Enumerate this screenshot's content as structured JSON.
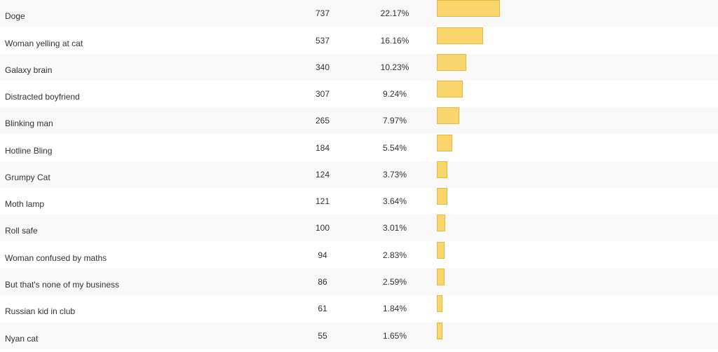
{
  "colors": {
    "bar_fill": "#f9d56c",
    "bar_border": "#e6b93a",
    "row_stripe": "#f8f8f8"
  },
  "chart_data": {
    "type": "bar",
    "categories": [
      "Doge",
      "Woman yelling at cat",
      "Galaxy brain",
      "Distracted boyfriend",
      "Blinking man",
      "Hotline Bling",
      "Grumpy Cat",
      "Moth lamp",
      "Roll safe",
      "Woman confused by maths",
      "But that's none of my business",
      "Russian kid in club",
      "Nyan cat"
    ],
    "values": [
      737,
      537,
      340,
      307,
      265,
      184,
      124,
      121,
      100,
      94,
      86,
      61,
      55
    ],
    "percentages": [
      "22.17%",
      "16.16%",
      "10.23%",
      "9.24%",
      "7.97%",
      "5.54%",
      "3.73%",
      "3.64%",
      "3.01%",
      "2.83%",
      "2.59%",
      "1.84%",
      "1.65%"
    ],
    "grid": false
  }
}
